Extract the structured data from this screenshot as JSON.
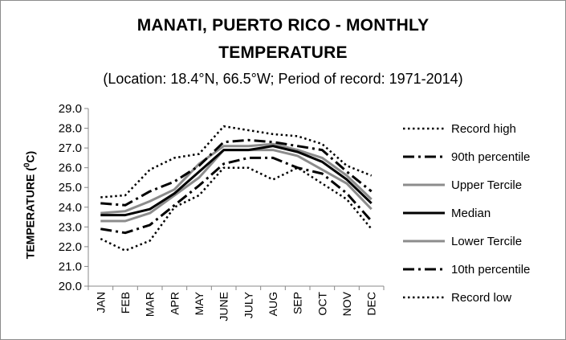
{
  "title_line1": "MANATI, PUERTO RICO - MONTHLY",
  "title_line2": "TEMPERATURE",
  "subtitle": "(Location: 18.4°N, 66.5°W; Period of record: 1971-2014)",
  "ylabel_main": "TEMPERATURE (",
  "ylabel_sup": "0",
  "ylabel_end": "C)",
  "chart_data": {
    "type": "line",
    "title": "MANATI, PUERTO RICO - MONTHLY TEMPERATURE",
    "subtitle": "(Location: 18.4°N, 66.5°W; Period of record: 1971-2014)",
    "xlabel": "",
    "ylabel": "TEMPERATURE (0C)",
    "ylim": [
      20.0,
      29.0
    ],
    "ytick_step": 1.0,
    "grid": false,
    "legend_position": "right",
    "categories": [
      "JAN",
      "FEB",
      "MAR",
      "APR",
      "MAY",
      "JUNE",
      "JULY",
      "AUG",
      "SEP",
      "OCT",
      "NOV",
      "DEC"
    ],
    "series": [
      {
        "name": "Record high",
        "style": "dotted",
        "color": "#000000",
        "values": [
          24.5,
          24.6,
          25.9,
          26.5,
          26.7,
          28.1,
          27.9,
          27.7,
          27.6,
          27.2,
          26.1,
          25.6
        ]
      },
      {
        "name": "90th percentile",
        "style": "dashdot",
        "color": "#000000",
        "values": [
          24.2,
          24.1,
          24.8,
          25.3,
          26.1,
          27.3,
          27.4,
          27.3,
          27.1,
          26.9,
          25.8,
          24.8
        ]
      },
      {
        "name": "Upper Tercile",
        "style": "solid-gray",
        "color": "#8c8c8c",
        "values": [
          23.7,
          23.8,
          24.3,
          24.9,
          26.2,
          27.1,
          27.1,
          27.2,
          26.9,
          26.5,
          25.6,
          24.4
        ]
      },
      {
        "name": "Median",
        "style": "solid",
        "color": "#000000",
        "values": [
          23.6,
          23.6,
          23.9,
          24.7,
          25.8,
          26.9,
          26.9,
          27.1,
          26.8,
          26.3,
          25.4,
          24.2
        ]
      },
      {
        "name": "Lower Tercile",
        "style": "solid-gray",
        "color": "#8c8c8c",
        "values": [
          23.3,
          23.3,
          23.7,
          24.6,
          25.5,
          26.9,
          26.9,
          26.9,
          26.6,
          25.9,
          25.2,
          23.9
        ]
      },
      {
        "name": "10th percentile",
        "style": "dashdot",
        "color": "#000000",
        "values": [
          22.9,
          22.7,
          23.1,
          24.1,
          25.1,
          26.2,
          26.5,
          26.5,
          26.0,
          25.7,
          24.7,
          23.3
        ]
      },
      {
        "name": "Record low",
        "style": "dotted",
        "color": "#000000",
        "values": [
          22.4,
          21.8,
          22.3,
          24.0,
          24.6,
          26.0,
          26.0,
          25.4,
          26.0,
          25.2,
          24.4,
          22.9
        ]
      }
    ]
  }
}
